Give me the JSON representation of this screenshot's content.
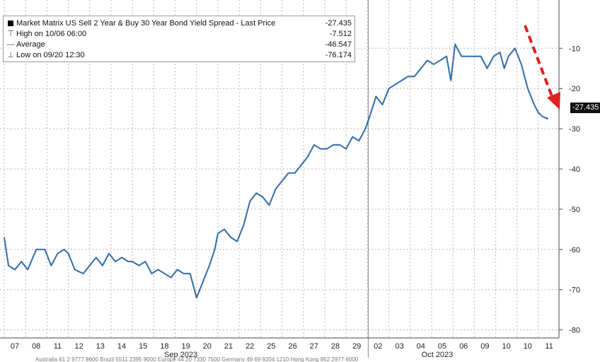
{
  "legend": {
    "title": "Market Matrix US Sell 2 Year & Buy 30 Year Bond Yield Spread - Last Price",
    "title_value": "-27.435",
    "high_label": "High on 10/06 06:00",
    "high_value": "-7.512",
    "avg_label": "Average",
    "avg_value": "-46.547",
    "low_label": "Low on 09/20 12:30",
    "low_value": "-76.174"
  },
  "last_price_label": "-27.435",
  "footer_note": "Australia 61 2 9777 8600 Brazil 5511 2395 9000 Europe 44 20 7330 7500 Germany 49 69 9204 1210 Hong Kong 852 2977 6000",
  "colors": {
    "line": "#1f6fc1",
    "trend_arrow": "#e02020",
    "grid": "#b8b8b8",
    "axis": "#444444"
  },
  "chart_data": {
    "type": "line",
    "title": "Market Matrix US Sell 2 Year & Buy 30 Year Bond Yield Spread - Last Price",
    "ylim": [
      -82,
      2
    ],
    "y_ticks": [
      -10,
      -20,
      -30,
      -40,
      -50,
      -60,
      -70,
      -80
    ],
    "y_tick_labels": [
      "-10",
      "-20",
      "-30",
      "-40",
      "-50",
      "-60",
      "-70",
      "-80"
    ],
    "x_tick_labels": [
      "07",
      "08",
      "11",
      "12",
      "13",
      "14",
      "15",
      "18",
      "19",
      "20",
      "21",
      "22",
      "25",
      "26",
      "27",
      "28",
      "29",
      "02",
      "03",
      "04",
      "05",
      "06",
      "09",
      "10",
      "10",
      "11"
    ],
    "month_labels": [
      {
        "label": "Sep 2023",
        "at_tick": 8
      },
      {
        "label": "Oct 2023",
        "at_tick": 20
      }
    ],
    "grid": true,
    "series": [
      {
        "x": [
          0,
          0.2,
          0.5,
          0.8,
          1.1,
          1.5,
          1.9,
          2.2,
          2.5,
          2.8,
          3.0,
          3.3,
          3.7,
          4.0,
          4.3,
          4.6,
          4.9,
          5.2,
          5.5,
          5.8,
          6.0,
          6.3,
          6.6,
          6.9,
          7.2,
          7.5,
          7.8,
          8.1,
          8.4,
          8.7,
          9.0,
          9.3,
          9.6,
          9.85,
          10.0,
          10.3,
          10.6,
          10.9,
          11.2,
          11.5,
          11.8,
          12.1,
          12.4,
          12.7,
          13.0,
          13.3,
          13.6,
          13.9,
          14.2,
          14.5,
          14.8,
          15.1,
          15.4,
          15.7,
          16.0,
          16.3,
          16.6,
          16.9,
          17.1,
          17.4,
          17.7,
          18.0,
          18.3,
          18.6,
          18.9,
          19.2,
          19.5,
          19.8,
          20.1,
          20.4,
          20.7,
          20.9,
          21.1,
          21.4,
          21.7,
          22.0,
          22.3,
          22.6,
          22.9,
          23.2,
          23.4,
          23.6,
          23.9,
          24.2,
          24.5,
          24.8,
          25.0,
          25.2,
          25.4
        ],
        "values": [
          -57,
          -64,
          -65,
          -63,
          -65,
          -60,
          -60,
          -64,
          -61,
          -60,
          -61,
          -65,
          -66,
          -64,
          -62,
          -64,
          -61,
          -63,
          -62,
          -63,
          -63,
          -64,
          -63,
          -66,
          -65,
          -66,
          -67,
          -65,
          -66,
          -66,
          -72,
          -68,
          -64,
          -60,
          -56,
          -55,
          -57,
          -58,
          -54,
          -48,
          -46,
          -47,
          -49,
          -45,
          -43,
          -41,
          -41,
          -39,
          -37,
          -34,
          -35,
          -35,
          -34,
          -34,
          -35,
          -32,
          -33,
          -30,
          -27,
          -22,
          -24,
          -20,
          -19,
          -18,
          -17,
          -17,
          -15,
          -13,
          -14,
          -13,
          -12,
          -18,
          -9,
          -12,
          -12,
          -12,
          -12,
          -15,
          -12,
          -11,
          -15,
          -12,
          -10,
          -14,
          -20,
          -24,
          -26,
          -27,
          -27.435
        ]
      }
    ],
    "annotation": {
      "type": "trend-arrow",
      "direction": "down",
      "color": "#e02020"
    }
  }
}
